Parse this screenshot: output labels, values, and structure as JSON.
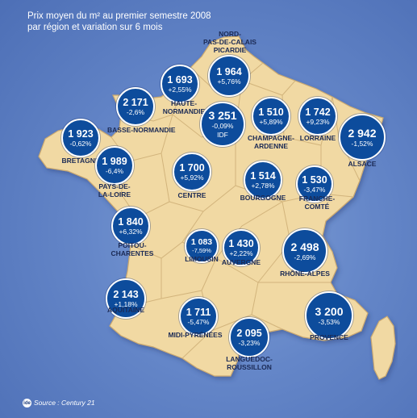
{
  "title": {
    "line1": "Prix moyen du m² au premier semestre 2008",
    "line2": "par région et variation sur 6 mois"
  },
  "regions": [
    {
      "id": "nord",
      "label_lines": [
        "NORD-",
        "PAS-DE-CALAIS",
        "PICARDIE"
      ],
      "price": "1 964",
      "variation": "+5,76%"
    },
    {
      "id": "haute-normandie",
      "label_lines": [
        "HAUTE-",
        "NORMANDIE"
      ],
      "price": "1 693",
      "variation": "+2,55%"
    },
    {
      "id": "basse-normandie",
      "label_lines": [
        "BASSE-NORMANDIE"
      ],
      "price": "2 171",
      "variation": "-2,6%"
    },
    {
      "id": "idf",
      "label_lines": [],
      "price": "3 251",
      "variation": "-0,09%",
      "inner_label": "IDF"
    },
    {
      "id": "champagne",
      "label_lines": [
        "CHAMPAGNE-",
        "ARDENNE"
      ],
      "price": "1 510",
      "variation": "+5,89%"
    },
    {
      "id": "lorraine",
      "label_lines": [
        "LORRAINE"
      ],
      "price": "1 742",
      "variation": "+9,23%"
    },
    {
      "id": "alsace",
      "label_lines": [
        "ALSACE"
      ],
      "price": "2 942",
      "variation": "-1,52%"
    },
    {
      "id": "bretagne",
      "label_lines": [
        "BRETAGNE"
      ],
      "price": "1 923",
      "variation": "-0,62%"
    },
    {
      "id": "pays-de-la-loire",
      "label_lines": [
        "PAYS-DE-",
        "LA-LOIRE"
      ],
      "price": "1 989",
      "variation": "-6,4%"
    },
    {
      "id": "centre",
      "label_lines": [
        "CENTRE"
      ],
      "price": "1 700",
      "variation": "+5,92%"
    },
    {
      "id": "bourgogne",
      "label_lines": [
        "BOURGOGNE"
      ],
      "price": "1 514",
      "variation": "+2,78%"
    },
    {
      "id": "franche-comte",
      "label_lines": [
        "FRANCHE-",
        "COMTÉ"
      ],
      "price": "1 530",
      "variation": "-3,47%"
    },
    {
      "id": "poitou",
      "label_lines": [
        "POITOU-",
        "CHARENTES"
      ],
      "price": "1 840",
      "variation": "+6,32%"
    },
    {
      "id": "limousin",
      "label_lines": [
        "LIMOUSIN"
      ],
      "price": "1 083",
      "variation": "-7,59%"
    },
    {
      "id": "auvergne",
      "label_lines": [
        "AUVERGNE"
      ],
      "price": "1 430",
      "variation": "+2,22%"
    },
    {
      "id": "rhone-alpes",
      "label_lines": [
        "RHÔNE-ALPES"
      ],
      "price": "2 498",
      "variation": "-2,69%"
    },
    {
      "id": "aquitaine",
      "label_lines": [
        "AQUITAINE"
      ],
      "price": "2 143",
      "variation": "+1,18%"
    },
    {
      "id": "midi-pyrenees",
      "label_lines": [
        "MIDI-PYRÉNÉES"
      ],
      "price": "1 711",
      "variation": "-5,47%"
    },
    {
      "id": "languedoc",
      "label_lines": [
        "LANGUEDOC-",
        "ROUSSILLON"
      ],
      "price": "2 095",
      "variation": "-3,23%"
    },
    {
      "id": "provence",
      "label_lines": [
        "PROVENCE"
      ],
      "price": "3 200",
      "variation": "-3,53%"
    }
  ],
  "source": {
    "logo": "ide",
    "text": "Source : Century 21"
  },
  "colors": {
    "background": "#6486c8",
    "land": "#f1d9a3",
    "land_border": "#c9a870",
    "bubble": "#0d4c9c",
    "bubble_border": "#ffffff",
    "label_text": "#1b2a55"
  }
}
